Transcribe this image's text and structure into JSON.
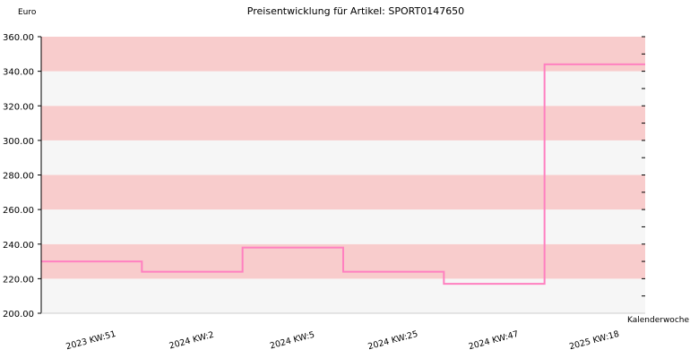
{
  "chart_data": {
    "type": "line",
    "step": true,
    "title": "Preisentwicklung für Artikel: SPORT0147650",
    "ylabel": "Euro",
    "xlabel": "Kalenderwoche",
    "ylim": [
      200,
      360
    ],
    "yticks": [
      "200.00",
      "220.00",
      "240.00",
      "260.00",
      "280.00",
      "300.00",
      "320.00",
      "340.00",
      "360.00"
    ],
    "categories": [
      "2023 KW:51",
      "2024 KW:2",
      "2024 KW:5",
      "2024 KW:25",
      "2024 KW:47",
      "2025 KW:18",
      ""
    ],
    "series": [
      {
        "values": [
          230,
          224,
          238,
          224,
          217,
          344,
          344
        ]
      }
    ],
    "grid": true,
    "colors": {
      "line": "#ff80c0",
      "band_dark": "#f8cccc",
      "band_light": "#f6f6f6",
      "axis": "#000000"
    }
  }
}
